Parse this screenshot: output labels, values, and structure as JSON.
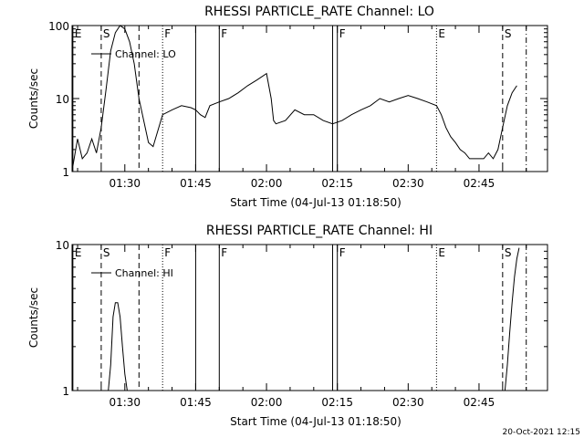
{
  "chart_data": [
    {
      "type": "line",
      "title": "RHESSI PARTICLE_RATE Channel: LO",
      "xlabel": "Start Time (04-Jul-13 01:18:50)",
      "ylabel": "Counts/sec",
      "x_tick_labels": [
        "01:30",
        "01:45",
        "02:00",
        "02:15",
        "02:30",
        "02:45"
      ],
      "xlim": [
        "01:18:50",
        "02:59:30"
      ],
      "y_scale": "log",
      "ylim": [
        1,
        100
      ],
      "y_tick_labels": [
        "1",
        "10",
        "100"
      ],
      "legend": {
        "entries": [
          "Channel: LO"
        ],
        "placement": "top-left"
      },
      "series": [
        {
          "name": "Channel: LO",
          "x": [
            "01:19",
            "01:20",
            "01:21",
            "01:22",
            "01:23",
            "01:24",
            "01:25",
            "01:26",
            "01:27",
            "01:28",
            "01:29",
            "01:30",
            "01:31",
            "01:32",
            "01:33",
            "01:34",
            "01:35",
            "01:36",
            "01:38",
            "01:40",
            "01:42",
            "01:44",
            "01:45",
            "01:46",
            "01:47",
            "01:48",
            "01:50",
            "01:52",
            "01:54",
            "01:56",
            "01:58",
            "02:00",
            "02:01",
            "02:01:30",
            "02:02",
            "02:04",
            "02:06",
            "02:08",
            "02:10",
            "02:12",
            "02:14",
            "02:16",
            "02:18",
            "02:20",
            "02:22",
            "02:24",
            "02:26",
            "02:28",
            "02:30",
            "02:32",
            "02:34",
            "02:36",
            "02:37",
            "02:38",
            "02:39",
            "02:40",
            "02:41",
            "02:42",
            "02:43",
            "02:44",
            "02:45",
            "02:46",
            "02:47",
            "02:48",
            "02:49",
            "02:50",
            "02:51",
            "02:52",
            "02:53"
          ],
          "y": [
            1.2,
            2.8,
            1.5,
            1.8,
            2.8,
            1.8,
            4,
            13,
            45,
            80,
            100,
            90,
            60,
            30,
            10,
            5,
            2.5,
            2.2,
            6,
            7,
            8,
            7.5,
            7,
            6,
            5.5,
            8,
            9,
            10,
            12,
            15,
            18,
            22,
            10,
            5,
            4.5,
            5,
            7,
            6,
            6,
            5,
            4.5,
            5,
            6,
            7,
            8,
            10,
            9,
            10,
            11,
            10,
            9,
            8,
            6,
            4,
            3,
            2.5,
            2,
            1.8,
            1.5,
            1.5,
            1.5,
            1.5,
            1.8,
            1.5,
            2,
            4,
            8,
            12,
            15
          ]
        }
      ],
      "markers": [
        {
          "label": "E",
          "time": "01:19",
          "style": "solid"
        },
        {
          "label": "S",
          "time": "01:25",
          "style": "dashed"
        },
        {
          "label": "",
          "time": "01:33",
          "style": "dashed"
        },
        {
          "label": "F",
          "time": "01:38",
          "style": "dotted"
        },
        {
          "label": "",
          "time": "01:45",
          "style": "solid"
        },
        {
          "label": "F",
          "time": "01:50",
          "style": "solid"
        },
        {
          "label": "",
          "time": "02:14",
          "style": "solid"
        },
        {
          "label": "F",
          "time": "02:15",
          "style": "solid"
        },
        {
          "label": "E",
          "time": "02:36",
          "style": "dotted"
        },
        {
          "label": "S",
          "time": "02:50",
          "style": "dashed"
        },
        {
          "label": "",
          "time": "02:55",
          "style": "dash-dot"
        }
      ]
    },
    {
      "type": "line",
      "title": "RHESSI PARTICLE_RATE Channel: HI",
      "xlabel": "Start Time (04-Jul-13 01:18:50)",
      "ylabel": "Counts/sec",
      "x_tick_labels": [
        "01:30",
        "01:45",
        "02:00",
        "02:15",
        "02:30",
        "02:45"
      ],
      "xlim": [
        "01:18:50",
        "02:59:30"
      ],
      "y_scale": "log",
      "ylim": [
        1,
        10
      ],
      "y_tick_labels": [
        "1",
        "10"
      ],
      "legend": {
        "entries": [
          "Channel: HI"
        ],
        "placement": "top-left"
      },
      "series": [
        {
          "name": "Channel: HI",
          "x": [
            "01:26:30",
            "01:27",
            "01:27:30",
            "01:28",
            "01:28:30",
            "01:29",
            "01:29:30",
            "01:30",
            "01:30:30",
            "01:31"
          ],
          "y": [
            1,
            1.5,
            3.2,
            4,
            4,
            3.2,
            2,
            1.3,
            1,
            1
          ],
          "x2": [
            "02:50:30",
            "02:51",
            "02:51:30",
            "02:52",
            "02:52:30",
            "02:53",
            "02:53:30"
          ],
          "y2": [
            1,
            1.5,
            2.5,
            4,
            6,
            8,
            9.5
          ]
        }
      ],
      "markers": [
        {
          "label": "E",
          "time": "01:19",
          "style": "solid"
        },
        {
          "label": "S",
          "time": "01:25",
          "style": "dashed"
        },
        {
          "label": "",
          "time": "01:33",
          "style": "dashed"
        },
        {
          "label": "F",
          "time": "01:38",
          "style": "dotted"
        },
        {
          "label": "",
          "time": "01:45",
          "style": "solid"
        },
        {
          "label": "F",
          "time": "01:50",
          "style": "solid"
        },
        {
          "label": "",
          "time": "02:14",
          "style": "solid"
        },
        {
          "label": "F",
          "time": "02:15",
          "style": "solid"
        },
        {
          "label": "E",
          "time": "02:36",
          "style": "dotted"
        },
        {
          "label": "S",
          "time": "02:50",
          "style": "dashed"
        },
        {
          "label": "",
          "time": "02:55",
          "style": "dash-dot"
        }
      ]
    }
  ],
  "footer": {
    "timestamp": "20-Oct-2021 12:15"
  }
}
